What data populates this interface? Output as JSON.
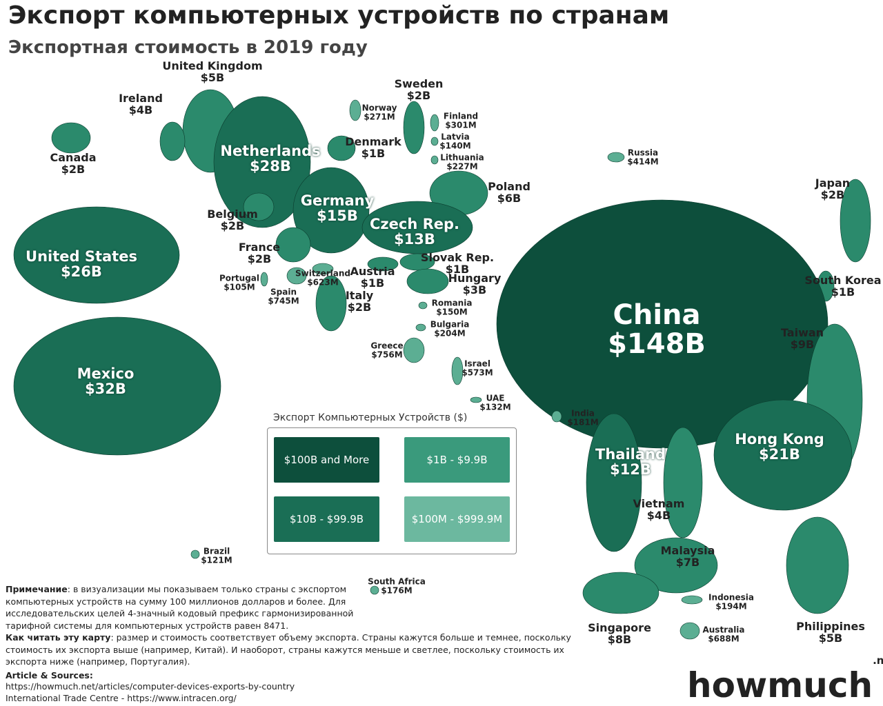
{
  "header": {
    "title": "Экспорт компьютерных устройств по странам",
    "subtitle": "Экспортная стоимость в 2019 году"
  },
  "countries": [
    {
      "name": "United Kingdom",
      "value": "$5B"
    },
    {
      "name": "Ireland",
      "value": "$4B"
    },
    {
      "name": "Canada",
      "value": "$2B"
    },
    {
      "name": "Netherlands",
      "value": "$28B"
    },
    {
      "name": "Norway",
      "value": "$271M"
    },
    {
      "name": "Sweden",
      "value": "$2B"
    },
    {
      "name": "Finland",
      "value": "$301M"
    },
    {
      "name": "Latvia",
      "value": "$140M"
    },
    {
      "name": "Lithuania",
      "value": "$227M"
    },
    {
      "name": "Denmark",
      "value": "$1B"
    },
    {
      "name": "Russia",
      "value": "$414M"
    },
    {
      "name": "Poland",
      "value": "$6B"
    },
    {
      "name": "Japan",
      "value": "$2B"
    },
    {
      "name": "Belgium",
      "value": "$2B"
    },
    {
      "name": "Germany",
      "value": "$15B"
    },
    {
      "name": "Czech Rep.",
      "value": "$13B"
    },
    {
      "name": "United States",
      "value": "$26B"
    },
    {
      "name": "France",
      "value": "$2B"
    },
    {
      "name": "Slovak Rep.",
      "value": "$1B"
    },
    {
      "name": "Portugal",
      "value": "$105M"
    },
    {
      "name": "Switzerland",
      "value": "$623M"
    },
    {
      "name": "Austria",
      "value": "$1B"
    },
    {
      "name": "Hungary",
      "value": "$3B"
    },
    {
      "name": "Spain",
      "value": "$745M"
    },
    {
      "name": "Italy",
      "value": "$2B"
    },
    {
      "name": "South Korea",
      "value": "$1B"
    },
    {
      "name": "Romania",
      "value": "$150M"
    },
    {
      "name": "China",
      "value": "$148B"
    },
    {
      "name": "Bulgaria",
      "value": "$204M"
    },
    {
      "name": "Taiwan",
      "value": "$9B"
    },
    {
      "name": "Greece",
      "value": "$756M"
    },
    {
      "name": "Israel",
      "value": "$573M"
    },
    {
      "name": "Mexico",
      "value": "$32B"
    },
    {
      "name": "UAE",
      "value": "$132M"
    },
    {
      "name": "India",
      "value": "$181M"
    },
    {
      "name": "Hong Kong",
      "value": "$21B"
    },
    {
      "name": "Thailand",
      "value": "$12B"
    },
    {
      "name": "Vietnam",
      "value": "$4B"
    },
    {
      "name": "Brazil",
      "value": "$121M"
    },
    {
      "name": "Malaysia",
      "value": "$7B"
    },
    {
      "name": "South Africa",
      "value": "$176M"
    },
    {
      "name": "Indonesia",
      "value": "$194M"
    },
    {
      "name": "Australia",
      "value": "$688M"
    },
    {
      "name": "Singapore",
      "value": "$8B"
    },
    {
      "name": "Philippines",
      "value": "$5B"
    }
  ],
  "legend": {
    "title": "Экспорт Компьютерных Устройств ($)",
    "items": [
      "$100B and More",
      "$1B - $9.9B",
      "$10B - $99.9B",
      "$100M - $999.9M"
    ]
  },
  "note": {
    "label": "Примечание",
    "text": ": в визуализации мы показываем только страны с экспортом компьютерных устройств на сумму 100 миллионов долларов и более. Для исследовательских целей 4-значный кодовый префикс гармонизированной тарифной системы для компьютерных устройств равен 8471."
  },
  "how_to_read": {
    "label": "Как читать эту карту",
    "text": ": размер и стоимость соответствует объему экспорта. Страны кажутся больше и темнее, поскольку стоимость их экспорта выше (например, Китай). И наоборот, страны кажутся меньше и светлее, поскольку стоимость их экспорта ниже (например, Португалия)."
  },
  "sources": {
    "title": "Article & Sources:",
    "lines": [
      "https://howmuch.net/articles/computer-devices-exports-by-country",
      "International Trade Centre - https://www.intracen.org/"
    ]
  },
  "logo": {
    "name": "howmuch",
    "suffix": ".net"
  }
}
